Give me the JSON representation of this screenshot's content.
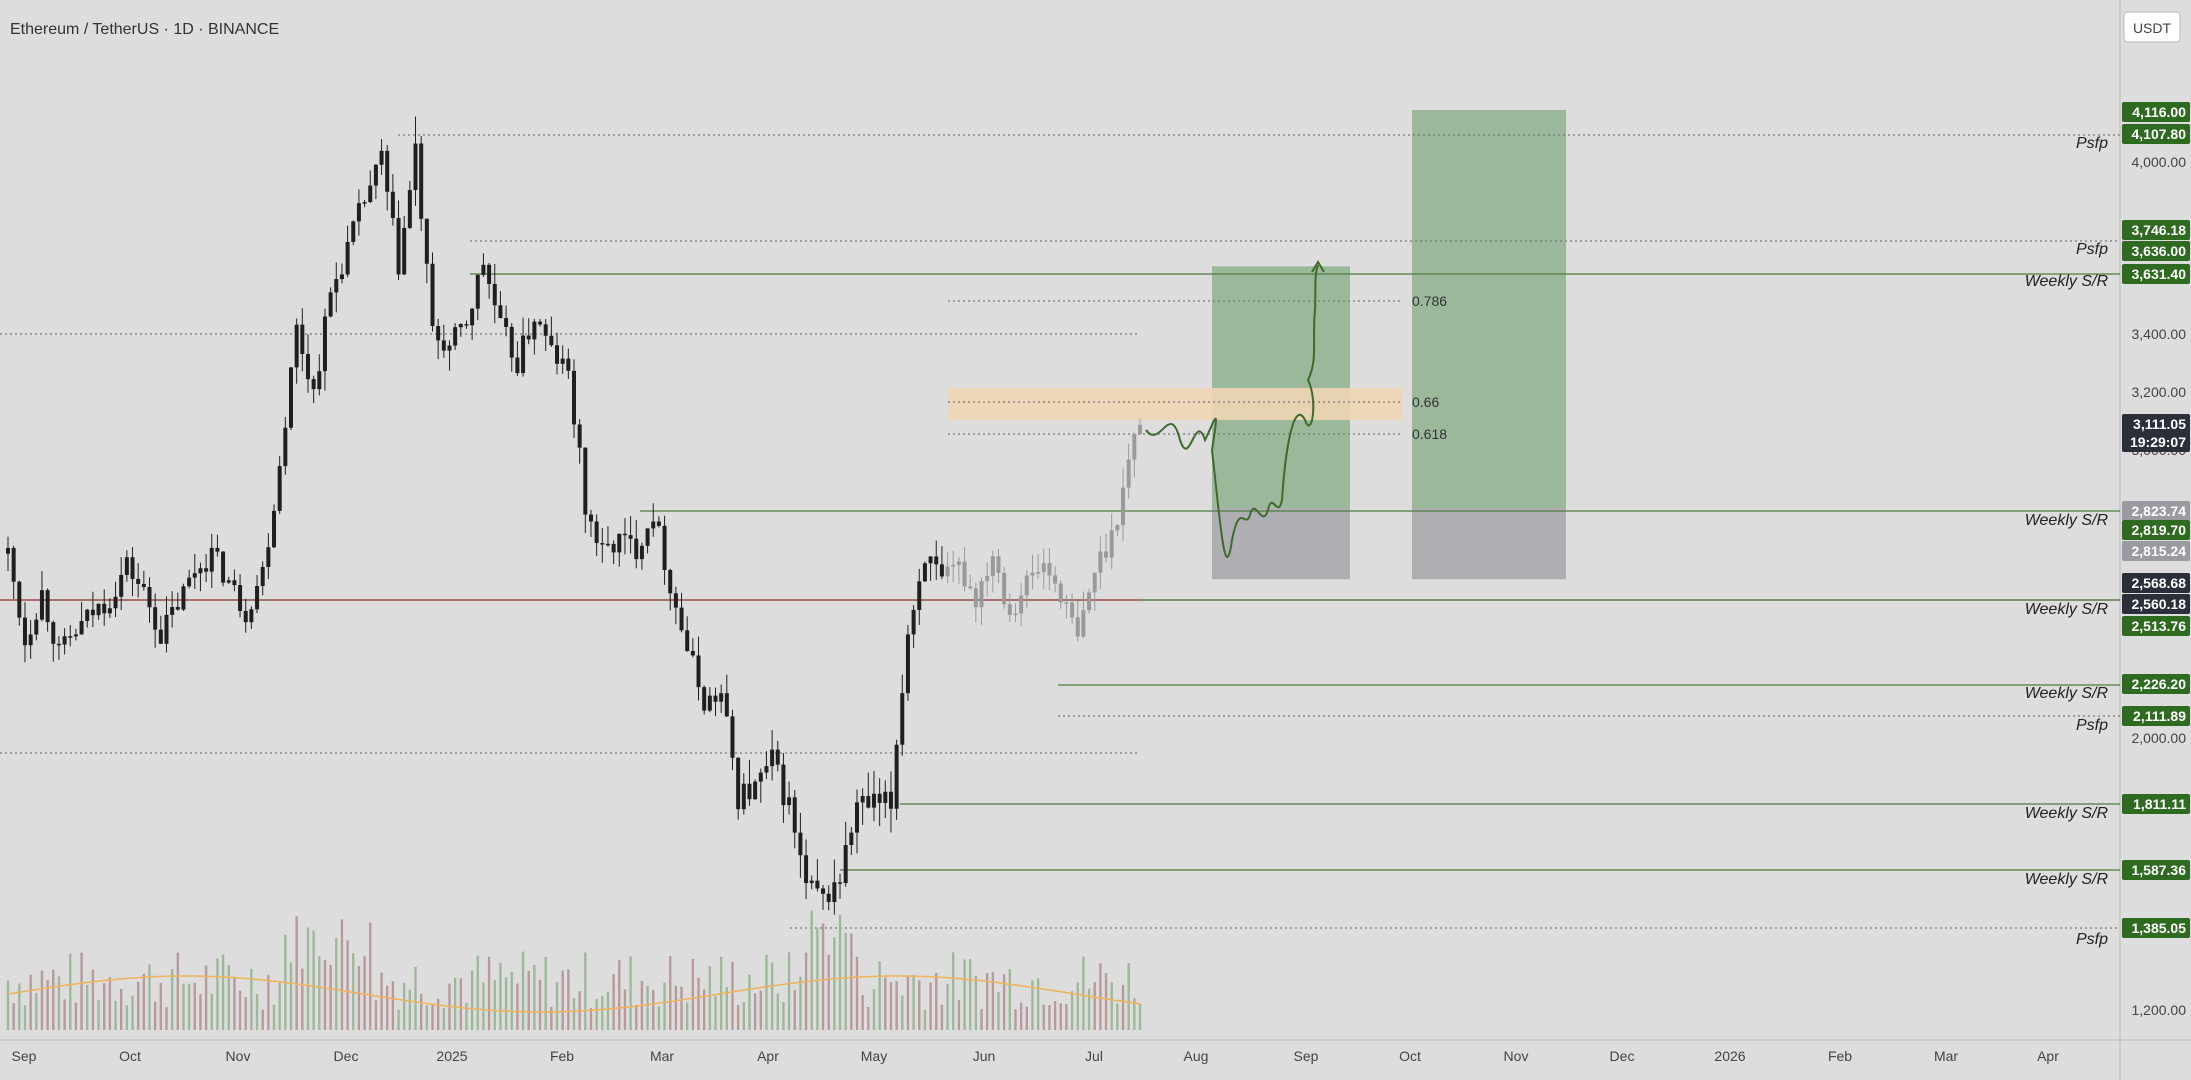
{
  "header": {
    "title": "Ethereum / TetherUS · 1D · BINANCE"
  },
  "currency_button": "USDT",
  "colors": {
    "background": "#dddddd",
    "candle_body": "#1f1f1f",
    "candle_recent": "#9a9a9a",
    "support_line": "#4f7d3f",
    "red_line": "#8b2f2f",
    "pill_green": "#2e6b20",
    "pill_dark": "#2a2f3a",
    "pill_grey": "#9a9aa0",
    "target_zone": "#8fb18f",
    "stop_zone": "#a8a8ae",
    "fib_zone": "#efd5b5",
    "volume_up": "#9db99a",
    "volume_down": "#b89a9a",
    "volume_ma": "#f0b35a"
  },
  "chart_data": {
    "type": "candlestick",
    "symbol": "Ethereum / TetherUS",
    "interval": "1D",
    "exchange": "BINANCE",
    "y_axis": {
      "ticks": [
        "1,200.00",
        "2,000.00",
        "3,000.00",
        "3,200.00",
        "3,400.00",
        "4,000.00"
      ],
      "tick_values": [
        1200,
        2000,
        3000,
        3200,
        3400,
        4000
      ]
    },
    "x_axis": {
      "ticks": [
        "Sep",
        "Oct",
        "Nov",
        "Dec",
        "2025",
        "Feb",
        "Mar",
        "Apr",
        "May",
        "Jun",
        "Jul",
        "Aug",
        "Sep",
        "Oct",
        "Nov",
        "Dec",
        "2026",
        "Feb",
        "Mar",
        "Apr"
      ]
    },
    "price_path": [
      [
        0,
        2660
      ],
      [
        6,
        2350
      ],
      [
        12,
        2520
      ],
      [
        18,
        2300
      ],
      [
        24,
        2380
      ],
      [
        30,
        2450
      ],
      [
        36,
        2500
      ],
      [
        42,
        2620
      ],
      [
        48,
        2520
      ],
      [
        54,
        2370
      ],
      [
        60,
        2480
      ],
      [
        66,
        2600
      ],
      [
        72,
        2660
      ],
      [
        78,
        2560
      ],
      [
        84,
        2450
      ],
      [
        90,
        2600
      ],
      [
        96,
        2960
      ],
      [
        102,
        3420
      ],
      [
        108,
        3200
      ],
      [
        114,
        3540
      ],
      [
        120,
        3700
      ],
      [
        126,
        3870
      ],
      [
        132,
        4000
      ],
      [
        138,
        3640
      ],
      [
        144,
        4020
      ],
      [
        150,
        3400
      ],
      [
        156,
        3350
      ],
      [
        162,
        3440
      ],
      [
        168,
        3650
      ],
      [
        174,
        3420
      ],
      [
        180,
        3300
      ],
      [
        186,
        3460
      ],
      [
        192,
        3340
      ],
      [
        198,
        3260
      ],
      [
        204,
        2820
      ],
      [
        210,
        2660
      ],
      [
        216,
        2710
      ],
      [
        222,
        2680
      ],
      [
        228,
        2810
      ],
      [
        234,
        2550
      ],
      [
        240,
        2320
      ],
      [
        246,
        2130
      ],
      [
        252,
        2150
      ],
      [
        258,
        1830
      ],
      [
        264,
        1850
      ],
      [
        270,
        1930
      ],
      [
        276,
        1800
      ],
      [
        282,
        1560
      ],
      [
        288,
        1520
      ],
      [
        294,
        1590
      ],
      [
        300,
        1800
      ],
      [
        306,
        1800
      ],
      [
        312,
        1800
      ],
      [
        318,
        2380
      ],
      [
        324,
        2660
      ],
      [
        330,
        2550
      ],
      [
        336,
        2610
      ],
      [
        342,
        2500
      ],
      [
        348,
        2670
      ],
      [
        354,
        2450
      ],
      [
        360,
        2560
      ],
      [
        366,
        2620
      ],
      [
        372,
        2520
      ],
      [
        378,
        2350
      ],
      [
        384,
        2600
      ],
      [
        390,
        2730
      ],
      [
        396,
        2960
      ],
      [
        400,
        3111.05
      ]
    ],
    "volume_approx": "bars at bottom with moving average line",
    "levels": [
      {
        "price": "4,116.00",
        "label": "",
        "style": "pill_green"
      },
      {
        "price": "4,107.80",
        "label": "Psfp",
        "style": "pill_green"
      },
      {
        "price": "3,746.18",
        "label": "",
        "style": "pill_green"
      },
      {
        "price": "3,636.00",
        "label": "Psfp",
        "style": "pill_green"
      },
      {
        "price": "3,631.40",
        "label": "Weekly S/R",
        "style": "pill_green"
      },
      {
        "price": "3,111.05",
        "label": "",
        "style": "pill_dark"
      },
      {
        "price": "19:29:07",
        "label": "",
        "style": "pill_dark"
      },
      {
        "price": "2,823.74",
        "label": "",
        "style": "pill_grey"
      },
      {
        "price": "2,819.70",
        "label": "Weekly S/R",
        "style": "pill_green"
      },
      {
        "price": "2,815.24",
        "label": "",
        "style": "pill_grey"
      },
      {
        "price": "2,568.68",
        "label": "",
        "style": "pill_dark"
      },
      {
        "price": "2,560.18",
        "label": "Weekly S/R",
        "style": "pill_dark"
      },
      {
        "price": "2,513.76",
        "label": "",
        "style": "pill_green"
      },
      {
        "price": "2,226.20",
        "label": "Weekly S/R",
        "style": "pill_green"
      },
      {
        "price": "2,111.89",
        "label": "Psfp",
        "style": "pill_green"
      },
      {
        "price": "1,811.11",
        "label": "Weekly S/R",
        "style": "pill_green"
      },
      {
        "price": "1,587.36",
        "label": "Weekly S/R",
        "style": "pill_green"
      },
      {
        "price": "1,385.05",
        "label": "Psfp",
        "style": "pill_green"
      }
    ],
    "fibonacci": {
      "labels": [
        "0.786",
        "0.66",
        "0.618"
      ],
      "zone": {
        "from": 0.618,
        "to": 0.66
      }
    },
    "positions": [
      {
        "type": "long",
        "entry": 2823.74,
        "target": 3636,
        "stop": 2568.68
      },
      {
        "type": "long",
        "entry": 2823.74,
        "target": 4116,
        "stop": 2568.68
      }
    ]
  }
}
